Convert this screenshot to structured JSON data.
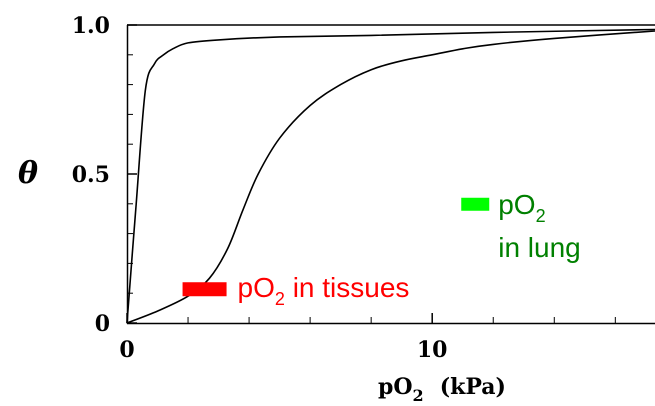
{
  "chart_data": {
    "type": "line",
    "xlabel": {
      "main": "pO",
      "sub": "2",
      "unit": "(kPa)"
    },
    "ylabel": "θ",
    "xlim": [
      0,
      17.3
    ],
    "ylim": [
      0,
      1.0
    ],
    "x_ticks": [
      {
        "value": 0,
        "label": "0"
      },
      {
        "value": 10,
        "label": "10"
      }
    ],
    "y_ticks": [
      {
        "value": 0,
        "label": "0"
      },
      {
        "value": 0.5,
        "label": "0.5"
      },
      {
        "value": 1.0,
        "label": "1.0"
      }
    ],
    "x_minor_ticks": [
      2,
      4,
      6,
      8,
      12,
      14,
      16
    ],
    "y_minor_ticks": [
      0.1,
      0.2,
      0.3,
      0.4,
      0.6,
      0.7,
      0.8,
      0.9
    ],
    "grid": false,
    "series": [
      {
        "color": "#000000",
        "points": [
          [
            0,
            0
          ],
          [
            0.3,
            0.4
          ],
          [
            0.6,
            0.78
          ],
          [
            0.9,
            0.87
          ],
          [
            1.2,
            0.9
          ],
          [
            1.5,
            0.92
          ],
          [
            2,
            0.94
          ],
          [
            3,
            0.95
          ],
          [
            5,
            0.96
          ],
          [
            8,
            0.965
          ],
          [
            12,
            0.975
          ],
          [
            17.3,
            0.985
          ]
        ]
      },
      {
        "color": "#000000",
        "points": [
          [
            0,
            0
          ],
          [
            1,
            0.04
          ],
          [
            2,
            0.09
          ],
          [
            2.7,
            0.15
          ],
          [
            3.3,
            0.25
          ],
          [
            3.8,
            0.38
          ],
          [
            4.3,
            0.5
          ],
          [
            5,
            0.62
          ],
          [
            6,
            0.73
          ],
          [
            7,
            0.8
          ],
          [
            8,
            0.85
          ],
          [
            9,
            0.88
          ],
          [
            10,
            0.9
          ],
          [
            11,
            0.92
          ],
          [
            12,
            0.935
          ],
          [
            14,
            0.955
          ],
          [
            17.3,
            0.98
          ]
        ]
      }
    ],
    "annotations": [
      {
        "label": "pO",
        "sub": "2",
        "rest": " in tissues",
        "color": "#ff0000",
        "marker_color": "#ff0000",
        "x": 3.0,
        "y": 0.12
      },
      {
        "label": "pO",
        "sub": "2",
        "rest": "in lung",
        "color": "#008000",
        "marker_color": "#00ff00",
        "x": 12.0,
        "y": 0.38
      }
    ]
  }
}
